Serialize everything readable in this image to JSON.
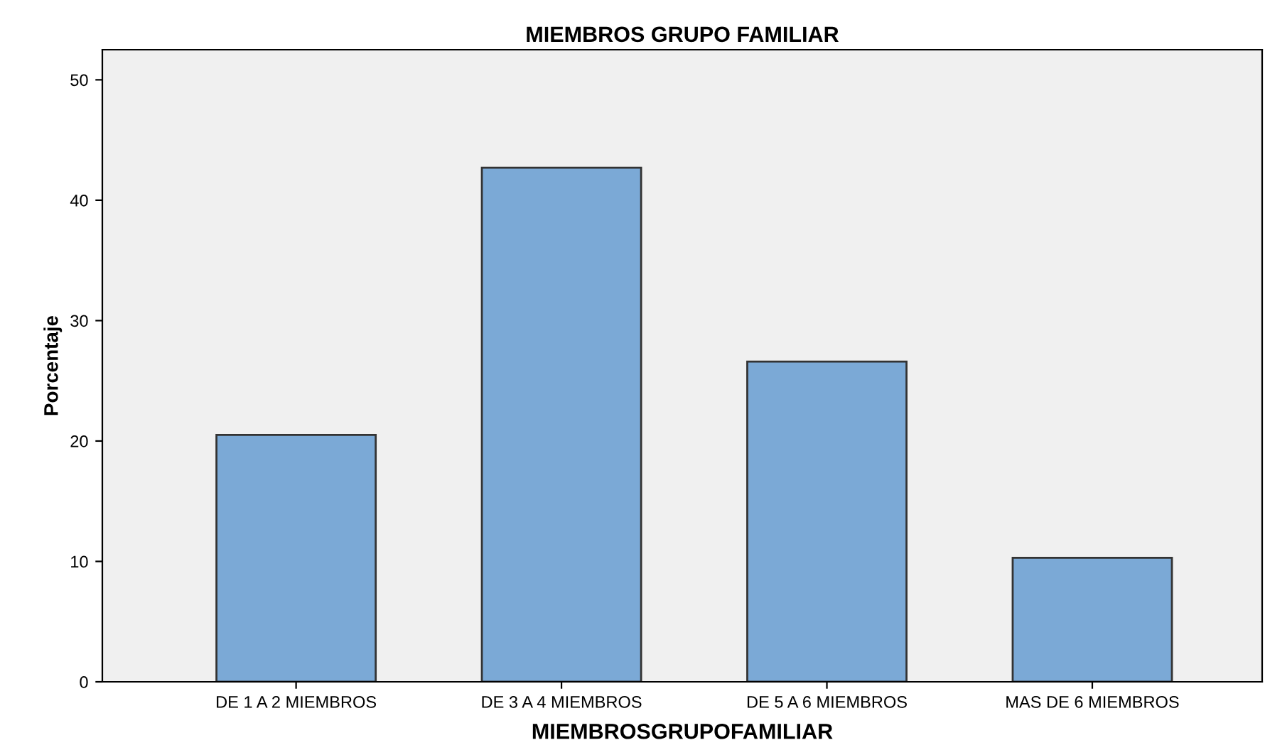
{
  "chart_data": {
    "type": "bar",
    "title": "MIEMBROS GRUPO FAMILIAR",
    "xlabel": "MIEMBROSGRUPOFAMILIAR",
    "ylabel": "Porcentaje",
    "categories": [
      "DE 1 A 2 MIEMBROS",
      "DE 3 A 4 MIEMBROS",
      "DE 5 A 6 MIEMBROS",
      "MAS DE 6 MIEMBROS"
    ],
    "values": [
      20.5,
      42.7,
      26.6,
      10.3
    ],
    "color": "#7ba9d6",
    "ylim": [
      0,
      52.5
    ],
    "yticks": [
      0,
      10,
      20,
      30,
      40,
      50
    ],
    "grid": false,
    "legend": false
  }
}
